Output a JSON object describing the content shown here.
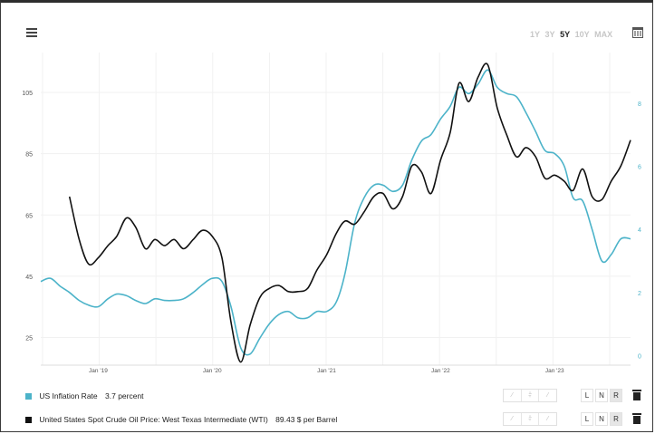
{
  "toolbar": {
    "ranges": [
      "1Y",
      "3Y",
      "5Y",
      "10Y",
      "MAX"
    ],
    "active_range": "5Y"
  },
  "colors": {
    "inflation": "#4cb3c9",
    "oil": "#111111",
    "grid": "#f1f1f1",
    "axis_text": "#555555",
    "right_axis_text": "#4cb3c9"
  },
  "chart_data": {
    "type": "line",
    "x_ticks": [
      "Jan '19",
      "Jan '20",
      "Jan '21",
      "Jan '22",
      "Jan '23"
    ],
    "y_left": {
      "ticks": [
        25,
        45,
        65,
        85,
        105
      ],
      "range": [
        16,
        118
      ]
    },
    "y_right": {
      "ticks": [
        0,
        2,
        4,
        6,
        8
      ],
      "range": [
        -0.3,
        9.6
      ]
    },
    "series": [
      {
        "name": "US Inflation Rate",
        "axis": "right",
        "values": [
          [
            "2018-07",
            2.35
          ],
          [
            "2018-08",
            2.45
          ],
          [
            "2018-09",
            2.2
          ],
          [
            "2018-10",
            2.0
          ],
          [
            "2018-11",
            1.75
          ],
          [
            "2018-12",
            1.6
          ],
          [
            "2019-01",
            1.55
          ],
          [
            "2019-02",
            1.8
          ],
          [
            "2019-03",
            1.95
          ],
          [
            "2019-04",
            1.9
          ],
          [
            "2019-05",
            1.75
          ],
          [
            "2019-06",
            1.65
          ],
          [
            "2019-07",
            1.8
          ],
          [
            "2019-08",
            1.75
          ],
          [
            "2019-09",
            1.75
          ],
          [
            "2019-10",
            1.8
          ],
          [
            "2019-11",
            2.0
          ],
          [
            "2019-12",
            2.25
          ],
          [
            "2020-01",
            2.45
          ],
          [
            "2020-02",
            2.35
          ],
          [
            "2020-03",
            1.55
          ],
          [
            "2020-04",
            0.25
          ],
          [
            "2020-05",
            0.05
          ],
          [
            "2020-06",
            0.55
          ],
          [
            "2020-07",
            1.0
          ],
          [
            "2020-08",
            1.3
          ],
          [
            "2020-09",
            1.4
          ],
          [
            "2020-10",
            1.2
          ],
          [
            "2020-11",
            1.2
          ],
          [
            "2020-12",
            1.4
          ],
          [
            "2021-01",
            1.4
          ],
          [
            "2021-02",
            1.7
          ],
          [
            "2021-03",
            2.6
          ],
          [
            "2021-04",
            4.2
          ],
          [
            "2021-05",
            5.0
          ],
          [
            "2021-06",
            5.4
          ],
          [
            "2021-07",
            5.4
          ],
          [
            "2021-08",
            5.2
          ],
          [
            "2021-09",
            5.4
          ],
          [
            "2021-10",
            6.2
          ],
          [
            "2021-11",
            6.8
          ],
          [
            "2021-12",
            7.0
          ],
          [
            "2022-01",
            7.5
          ],
          [
            "2022-02",
            7.9
          ],
          [
            "2022-03",
            8.5
          ],
          [
            "2022-04",
            8.3
          ],
          [
            "2022-05",
            8.6
          ],
          [
            "2022-06",
            9.05
          ],
          [
            "2022-07",
            8.5
          ],
          [
            "2022-08",
            8.3
          ],
          [
            "2022-09",
            8.2
          ],
          [
            "2022-10",
            7.7
          ],
          [
            "2022-11",
            7.1
          ],
          [
            "2022-12",
            6.5
          ],
          [
            "2023-01",
            6.4
          ],
          [
            "2023-02",
            6.0
          ],
          [
            "2023-03",
            5.0
          ],
          [
            "2023-04",
            4.9
          ],
          [
            "2023-05",
            4.0
          ],
          [
            "2023-06",
            3.0
          ],
          [
            "2023-07",
            3.2
          ],
          [
            "2023-08",
            3.7
          ],
          [
            "2023-09",
            3.7
          ]
        ]
      },
      {
        "name": "United States Spot Crude Oil Price: West Texas Intermediate (WTI)",
        "axis": "left",
        "values": [
          [
            "2018-10",
            71
          ],
          [
            "2018-11",
            57
          ],
          [
            "2018-12",
            49
          ],
          [
            "2019-01",
            51
          ],
          [
            "2019-02",
            55
          ],
          [
            "2019-03",
            58
          ],
          [
            "2019-04",
            64
          ],
          [
            "2019-05",
            61
          ],
          [
            "2019-06",
            54
          ],
          [
            "2019-07",
            57
          ],
          [
            "2019-08",
            55
          ],
          [
            "2019-09",
            57
          ],
          [
            "2019-10",
            54
          ],
          [
            "2019-11",
            57
          ],
          [
            "2019-12",
            60
          ],
          [
            "2020-01",
            58
          ],
          [
            "2020-02",
            51
          ],
          [
            "2020-03",
            30
          ],
          [
            "2020-04",
            17
          ],
          [
            "2020-05",
            29
          ],
          [
            "2020-06",
            38
          ],
          [
            "2020-07",
            41
          ],
          [
            "2020-08",
            42
          ],
          [
            "2020-09",
            40
          ],
          [
            "2020-10",
            40
          ],
          [
            "2020-11",
            41
          ],
          [
            "2020-12",
            47
          ],
          [
            "2021-01",
            52
          ],
          [
            "2021-02",
            59
          ],
          [
            "2021-03",
            63
          ],
          [
            "2021-04",
            62
          ],
          [
            "2021-05",
            66
          ],
          [
            "2021-06",
            71
          ],
          [
            "2021-07",
            72
          ],
          [
            "2021-08",
            67
          ],
          [
            "2021-09",
            71
          ],
          [
            "2021-10",
            81
          ],
          [
            "2021-11",
            79
          ],
          [
            "2021-12",
            72
          ],
          [
            "2022-01",
            83
          ],
          [
            "2022-02",
            92
          ],
          [
            "2022-03",
            108
          ],
          [
            "2022-04",
            102
          ],
          [
            "2022-05",
            110
          ],
          [
            "2022-06",
            114
          ],
          [
            "2022-07",
            100
          ],
          [
            "2022-08",
            91
          ],
          [
            "2022-09",
            84
          ],
          [
            "2022-10",
            87
          ],
          [
            "2022-11",
            84
          ],
          [
            "2022-12",
            77
          ],
          [
            "2023-01",
            78
          ],
          [
            "2023-02",
            76
          ],
          [
            "2023-03",
            73
          ],
          [
            "2023-04",
            80
          ],
          [
            "2023-05",
            71
          ],
          [
            "2023-06",
            70
          ],
          [
            "2023-07",
            76
          ],
          [
            "2023-08",
            81
          ],
          [
            "2023-09",
            89.43
          ]
        ]
      }
    ]
  },
  "legend": [
    {
      "name": "US Inflation Rate",
      "value": "3.7 percent"
    },
    {
      "name": "United States Spot Crude Oil Price: West Texas Intermediate (WTI)",
      "value": "89.43 $ per Barrel"
    }
  ],
  "row_controls": {
    "tools": [
      "⁄",
      "⫩",
      "⁄"
    ],
    "lnr": [
      "L",
      "N",
      "R"
    ],
    "selected": "R"
  }
}
